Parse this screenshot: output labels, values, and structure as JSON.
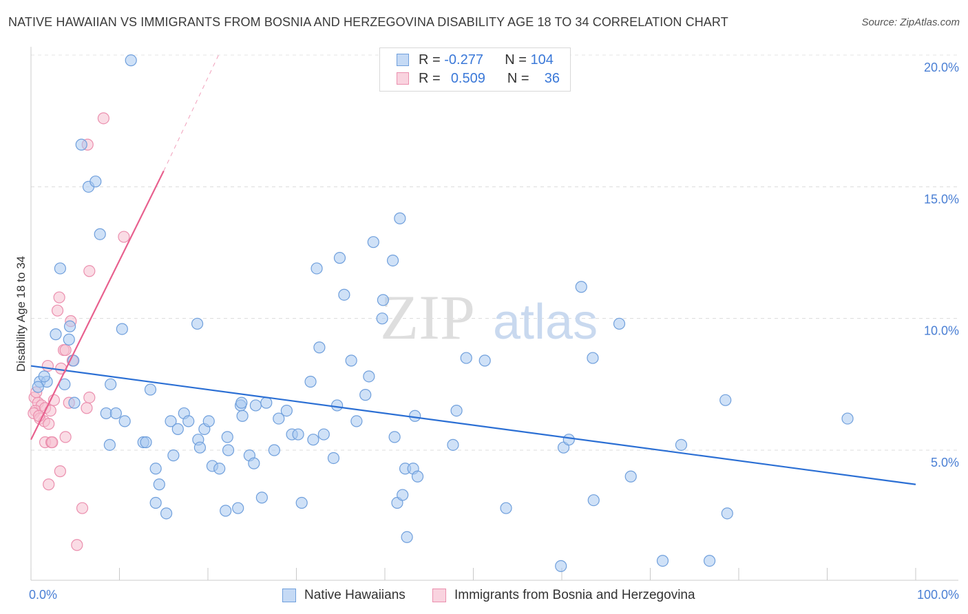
{
  "title": "NATIVE HAWAIIAN VS IMMIGRANTS FROM BOSNIA AND HERZEGOVINA DISABILITY AGE 18 TO 34 CORRELATION CHART",
  "source": "Source: ZipAtlas.com",
  "watermark": {
    "zip": "ZIP",
    "atlas": "atlas"
  },
  "legend": {
    "rows": [
      {
        "r_label": "R =",
        "r_value": "-0.277",
        "n_label": "N =",
        "n_value": "104"
      },
      {
        "r_label": "R =",
        "r_value": "0.509",
        "n_label": "N =",
        "n_value": "36"
      }
    ]
  },
  "bottom_legend": [
    "Native Hawaiians",
    "Immigrants from Bosnia and Herzegovina"
  ],
  "colors": {
    "blue_fill": "#a8c8f0",
    "blue_stroke": "#6f9fdc",
    "blue_line": "#2b6fd4",
    "pink_fill": "#f6bfd0",
    "pink_stroke": "#eb8fae",
    "pink_line": "#e8608e",
    "grid": "#dcdcdc",
    "tick_text": "#4a7fd4"
  },
  "chart_data": {
    "type": "scatter",
    "title": "NATIVE HAWAIIAN VS IMMIGRANTS FROM BOSNIA AND HERZEGOVINA DISABILITY AGE 18 TO 34 CORRELATION CHART",
    "xlabel": "",
    "ylabel": "Disability Age 18 to 34",
    "xlim": [
      0,
      100
    ],
    "ylim": [
      0,
      20.8
    ],
    "x_tick_labels": [
      {
        "v": 0,
        "label": "0.0%"
      },
      {
        "v": 100,
        "label": "100.0%"
      }
    ],
    "y_tick_labels": [
      {
        "v": 5,
        "label": "5.0%"
      },
      {
        "v": 10,
        "label": "10.0%"
      },
      {
        "v": 15,
        "label": "15.0%"
      },
      {
        "v": 20,
        "label": "20.0%"
      }
    ],
    "series": [
      {
        "name": "Native Hawaiians",
        "r": -0.277,
        "n": 104,
        "trend": {
          "x0": 0,
          "y0": 8.2,
          "x1": 100,
          "y1": 3.7
        },
        "points": [
          [
            11.3,
            19.8
          ],
          [
            5.7,
            16.6
          ],
          [
            6.5,
            15.0
          ],
          [
            7.3,
            15.2
          ],
          [
            7.8,
            13.2
          ],
          [
            3.3,
            11.9
          ],
          [
            10.3,
            9.6
          ],
          [
            2.8,
            9.4
          ],
          [
            4.4,
            9.7
          ],
          [
            4.3,
            9.2
          ],
          [
            1.0,
            7.6
          ],
          [
            1.8,
            7.6
          ],
          [
            3.8,
            7.5
          ],
          [
            0.8,
            7.4
          ],
          [
            1.5,
            7.8
          ],
          [
            4.8,
            8.4
          ],
          [
            4.9,
            6.8
          ],
          [
            9.0,
            7.5
          ],
          [
            13.5,
            7.3
          ],
          [
            8.5,
            6.4
          ],
          [
            9.6,
            6.4
          ],
          [
            10.6,
            6.1
          ],
          [
            8.9,
            5.2
          ],
          [
            12.7,
            5.3
          ],
          [
            13.0,
            5.3
          ],
          [
            14.1,
            4.3
          ],
          [
            14.5,
            3.7
          ],
          [
            15.8,
            6.1
          ],
          [
            16.1,
            4.8
          ],
          [
            17.3,
            6.4
          ],
          [
            17.8,
            6.1
          ],
          [
            16.6,
            5.8
          ],
          [
            14.1,
            3.0
          ],
          [
            15.3,
            2.6
          ],
          [
            18.9,
            5.4
          ],
          [
            19.1,
            5.1
          ],
          [
            19.6,
            5.8
          ],
          [
            20.1,
            6.1
          ],
          [
            20.5,
            4.4
          ],
          [
            21.3,
            4.3
          ],
          [
            22.0,
            2.7
          ],
          [
            22.3,
            5.0
          ],
          [
            23.4,
            2.8
          ],
          [
            23.7,
            6.7
          ],
          [
            23.9,
            6.3
          ],
          [
            24.7,
            4.8
          ],
          [
            25.2,
            4.5
          ],
          [
            25.4,
            6.7
          ],
          [
            26.6,
            6.8
          ],
          [
            26.1,
            3.2
          ],
          [
            27.5,
            5.0
          ],
          [
            28.0,
            6.2
          ],
          [
            28.9,
            6.5
          ],
          [
            29.5,
            5.6
          ],
          [
            30.2,
            5.6
          ],
          [
            30.6,
            3.0
          ],
          [
            31.6,
            7.6
          ],
          [
            31.9,
            5.4
          ],
          [
            32.6,
            8.9
          ],
          [
            32.3,
            11.9
          ],
          [
            33.1,
            5.6
          ],
          [
            34.2,
            4.7
          ],
          [
            34.6,
            6.7
          ],
          [
            34.9,
            12.3
          ],
          [
            35.4,
            10.9
          ],
          [
            36.2,
            8.4
          ],
          [
            36.8,
            6.1
          ],
          [
            37.8,
            7.1
          ],
          [
            38.2,
            7.8
          ],
          [
            38.7,
            12.9
          ],
          [
            39.7,
            10.0
          ],
          [
            39.8,
            10.7
          ],
          [
            40.9,
            12.2
          ],
          [
            41.1,
            5.5
          ],
          [
            41.4,
            3.0
          ],
          [
            41.7,
            13.8
          ],
          [
            42.0,
            3.3
          ],
          [
            42.3,
            4.3
          ],
          [
            43.2,
            4.3
          ],
          [
            42.5,
            1.7
          ],
          [
            43.4,
            6.3
          ],
          [
            43.7,
            4.0
          ],
          [
            48.1,
            6.5
          ],
          [
            47.7,
            5.2
          ],
          [
            49.2,
            8.5
          ],
          [
            51.3,
            8.4
          ],
          [
            53.7,
            2.8
          ],
          [
            59.9,
            0.6
          ],
          [
            60.2,
            5.1
          ],
          [
            60.8,
            5.4
          ],
          [
            62.2,
            11.2
          ],
          [
            63.5,
            8.5
          ],
          [
            63.6,
            3.1
          ],
          [
            66.5,
            9.8
          ],
          [
            67.8,
            4.0
          ],
          [
            71.4,
            0.8
          ],
          [
            73.5,
            5.2
          ],
          [
            76.7,
            0.8
          ],
          [
            78.5,
            6.9
          ],
          [
            78.7,
            2.6
          ],
          [
            92.3,
            6.2
          ],
          [
            23.8,
            6.8
          ],
          [
            22.2,
            5.5
          ],
          [
            18.8,
            9.8
          ]
        ]
      },
      {
        "name": "Immigrants from Bosnia and Herzegovina",
        "r": 0.509,
        "n": 36,
        "trend": {
          "x0": 0,
          "y0": 5.4,
          "x1": 15.0,
          "y1": 15.6
        },
        "trend_dashed": {
          "x0": 15.0,
          "y0": 15.6,
          "x1": 21.2,
          "y1": 20.0
        },
        "points": [
          [
            8.2,
            17.6
          ],
          [
            6.4,
            16.6
          ],
          [
            10.5,
            13.1
          ],
          [
            6.6,
            11.8
          ],
          [
            3.2,
            10.8
          ],
          [
            3.0,
            10.3
          ],
          [
            4.5,
            9.9
          ],
          [
            3.7,
            8.8
          ],
          [
            3.9,
            8.8
          ],
          [
            1.9,
            8.2
          ],
          [
            3.4,
            8.1
          ],
          [
            4.7,
            8.4
          ],
          [
            6.6,
            7.0
          ],
          [
            2.6,
            6.9
          ],
          [
            0.4,
            7.0
          ],
          [
            0.8,
            6.8
          ],
          [
            1.2,
            6.7
          ],
          [
            0.5,
            6.5
          ],
          [
            1.6,
            6.6
          ],
          [
            2.2,
            6.5
          ],
          [
            4.3,
            6.8
          ],
          [
            6.3,
            6.6
          ],
          [
            0.3,
            6.4
          ],
          [
            1.0,
            6.2
          ],
          [
            1.5,
            6.1
          ],
          [
            2.0,
            6.0
          ],
          [
            0.9,
            6.3
          ],
          [
            3.9,
            5.5
          ],
          [
            1.6,
            5.3
          ],
          [
            2.3,
            5.3
          ],
          [
            2.4,
            5.3
          ],
          [
            3.3,
            4.2
          ],
          [
            2.0,
            3.7
          ],
          [
            5.8,
            2.8
          ],
          [
            5.2,
            1.4
          ],
          [
            0.6,
            7.2
          ]
        ]
      }
    ]
  }
}
